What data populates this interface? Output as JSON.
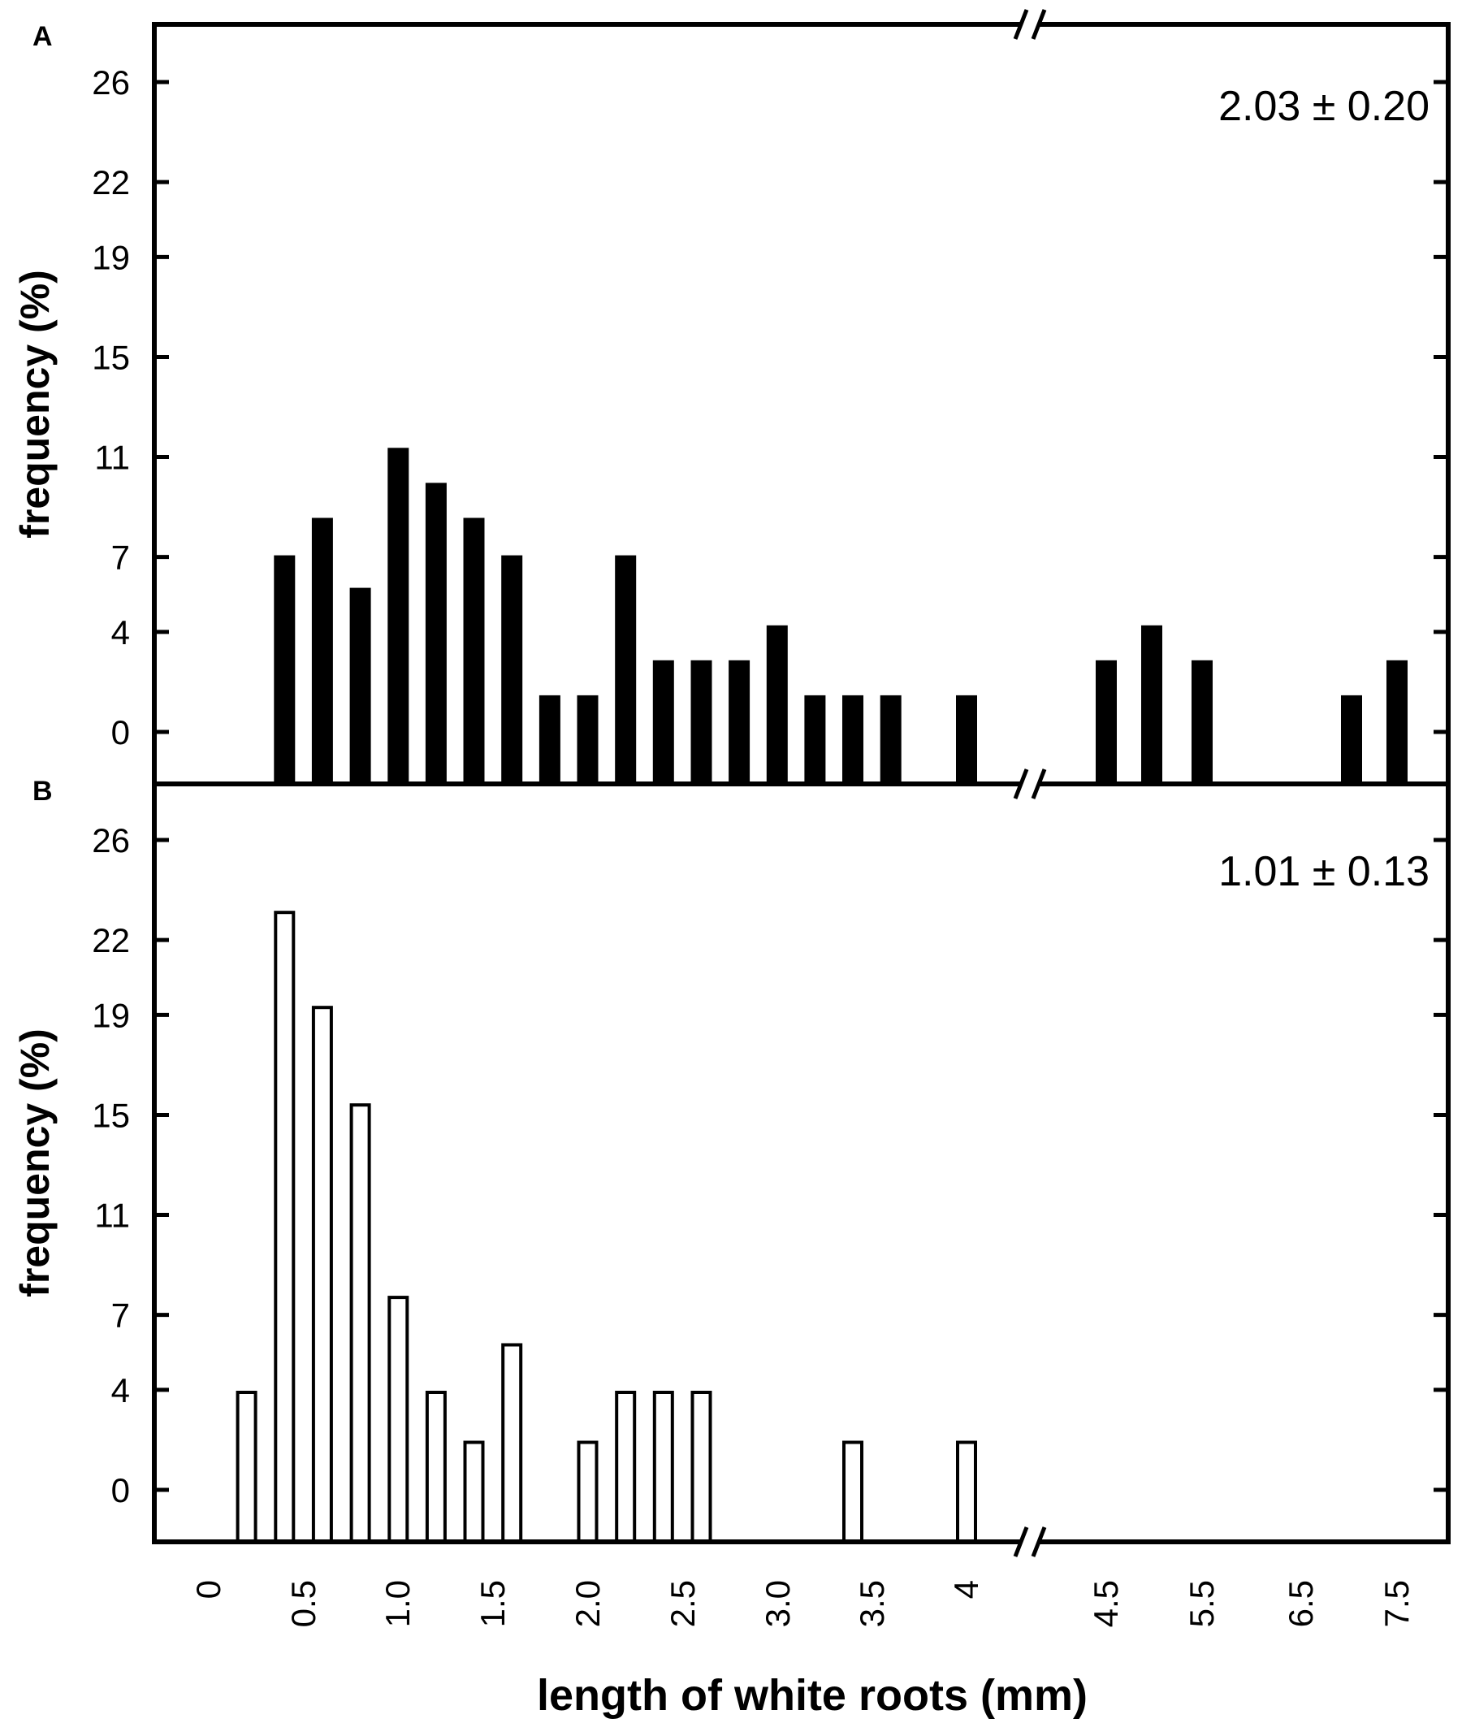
{
  "chart_data": [
    {
      "type": "bar",
      "panel": "A",
      "annotation": "2.03 ± 0.20",
      "ylabel": "frequency (%)",
      "yticks": [
        "0",
        "4",
        "7",
        "11",
        "15",
        "19",
        "22",
        "26"
      ],
      "bar_fill": "#000000",
      "categories": [
        "0.4",
        "0.6",
        "0.8",
        "1.0",
        "1.2",
        "1.4",
        "1.6",
        "1.8",
        "2.0",
        "2.2",
        "2.4",
        "2.6",
        "2.8",
        "3.0",
        "3.2",
        "3.4",
        "3.6",
        "4.0",
        "4.5",
        "5.0",
        "5.5",
        "7.0",
        "7.5"
      ],
      "values": [
        7,
        8.5,
        5.7,
        11.3,
        9.9,
        8.5,
        7,
        1.4,
        1.4,
        7,
        2.8,
        2.8,
        2.8,
        4.2,
        1.4,
        1.4,
        1.4,
        1.4,
        2.8,
        4.2,
        2.8,
        1.4,
        2.8
      ]
    },
    {
      "type": "bar",
      "panel": "B",
      "annotation": "1.01 ± 0.13",
      "ylabel": "frequency (%)",
      "yticks": [
        "0",
        "4",
        "7",
        "11",
        "15",
        "19",
        "22",
        "26"
      ],
      "bar_fill": "#ffffff",
      "categories": [
        "0.2",
        "0.4",
        "0.6",
        "0.8",
        "1.0",
        "1.2",
        "1.4",
        "1.6",
        "2.0",
        "2.2",
        "2.4",
        "2.6",
        "3.4",
        "4.0"
      ],
      "values": [
        3.9,
        23.1,
        19.3,
        15.4,
        7.7,
        3.9,
        1.9,
        5.8,
        1.9,
        3.9,
        3.9,
        3.9,
        1.9,
        1.9
      ]
    }
  ],
  "x_axis": {
    "label": "length of white roots (mm)",
    "tick_labels": [
      "0",
      "0.5",
      "1.0",
      "1.5",
      "2.0",
      "2.5",
      "3.0",
      "3.5",
      "4",
      "4.5",
      "5.5",
      "6.5",
      "7.5"
    ],
    "break_marker": "//"
  }
}
